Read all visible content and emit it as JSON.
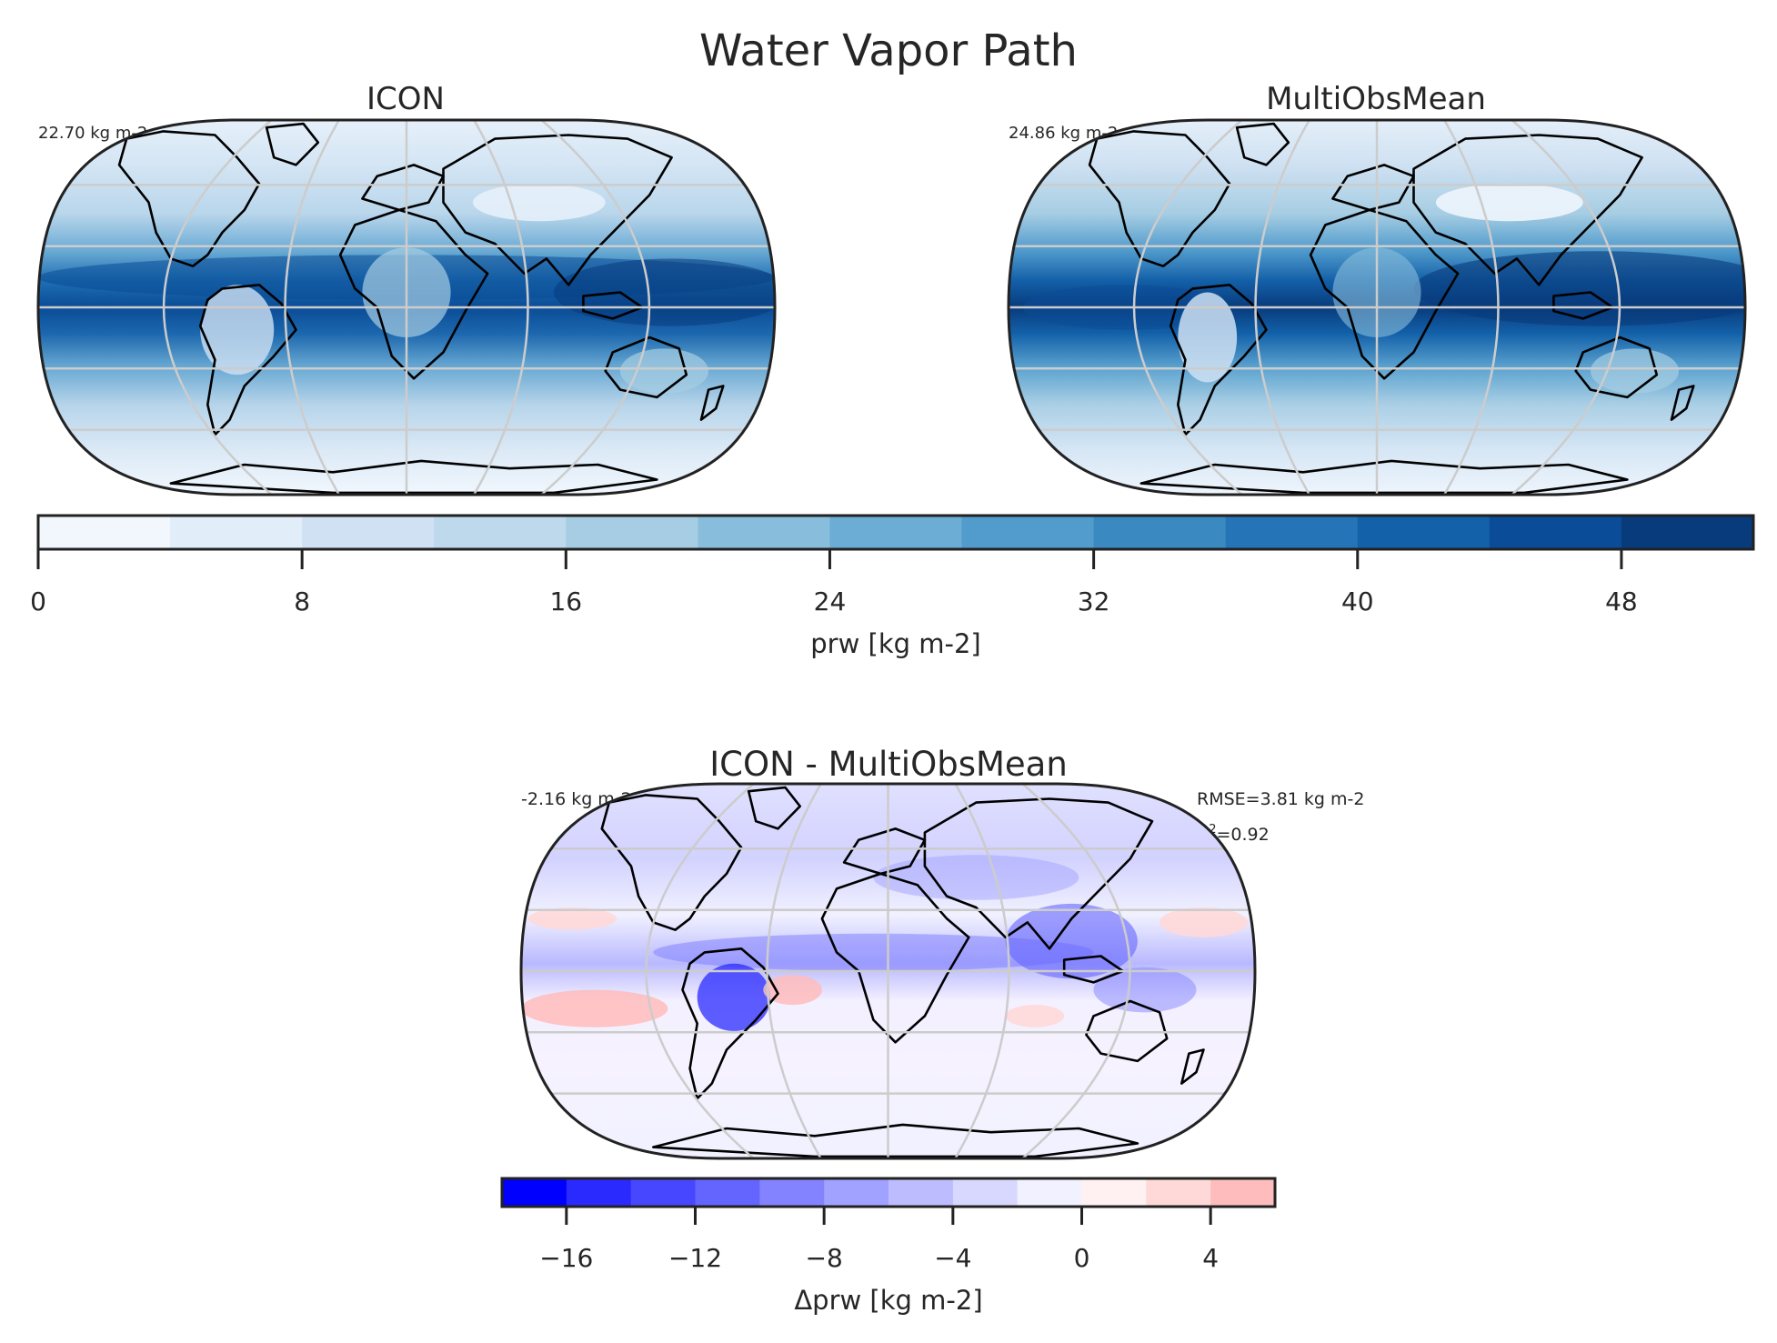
{
  "figure": {
    "title": "Water Vapor Path"
  },
  "maps": [
    {
      "id": "icon",
      "title": "ICON",
      "mean_label": "22.70 kg m-2"
    },
    {
      "id": "obs",
      "title": "MultiObsMean",
      "mean_label": "24.86 kg m-2"
    },
    {
      "id": "diff",
      "title": "ICON - MultiObsMean",
      "mean_label": "-2.16 kg m-2",
      "rmse_label": "RMSE=3.81 kg m-2",
      "r2_prefix": "R",
      "r2_sup": "2",
      "r2_value": "=0.92"
    }
  ],
  "colorbars": [
    {
      "id": "prw",
      "label": "prw [kg m-2]",
      "range": [
        0,
        52
      ],
      "step": 4,
      "ticks": [
        "0",
        "8",
        "16",
        "24",
        "32",
        "40",
        "48"
      ],
      "colors": [
        "#f1f7fd",
        "#e1edf8",
        "#cfe1f2",
        "#bed8ec",
        "#a6cde3",
        "#88bedc",
        "#6badd5",
        "#519ccc",
        "#3a89c1",
        "#2474b7",
        "#1361a9",
        "#0a4c97",
        "#083b7c"
      ]
    },
    {
      "id": "dprw",
      "label": "Δprw [kg m-2]",
      "range": [
        -18,
        6
      ],
      "step": 2,
      "ticks": [
        "−16",
        "−12",
        "−8",
        "−4",
        "0",
        "4"
      ],
      "colors": [
        "#0000ff",
        "#2a2aff",
        "#4747ff",
        "#6464ff",
        "#8383ff",
        "#a1a1ff",
        "#bcbcff",
        "#d8d8ff",
        "#f1f1ff",
        "#fff1f1",
        "#ffd8d8",
        "#ffbcbc"
      ]
    }
  ]
}
